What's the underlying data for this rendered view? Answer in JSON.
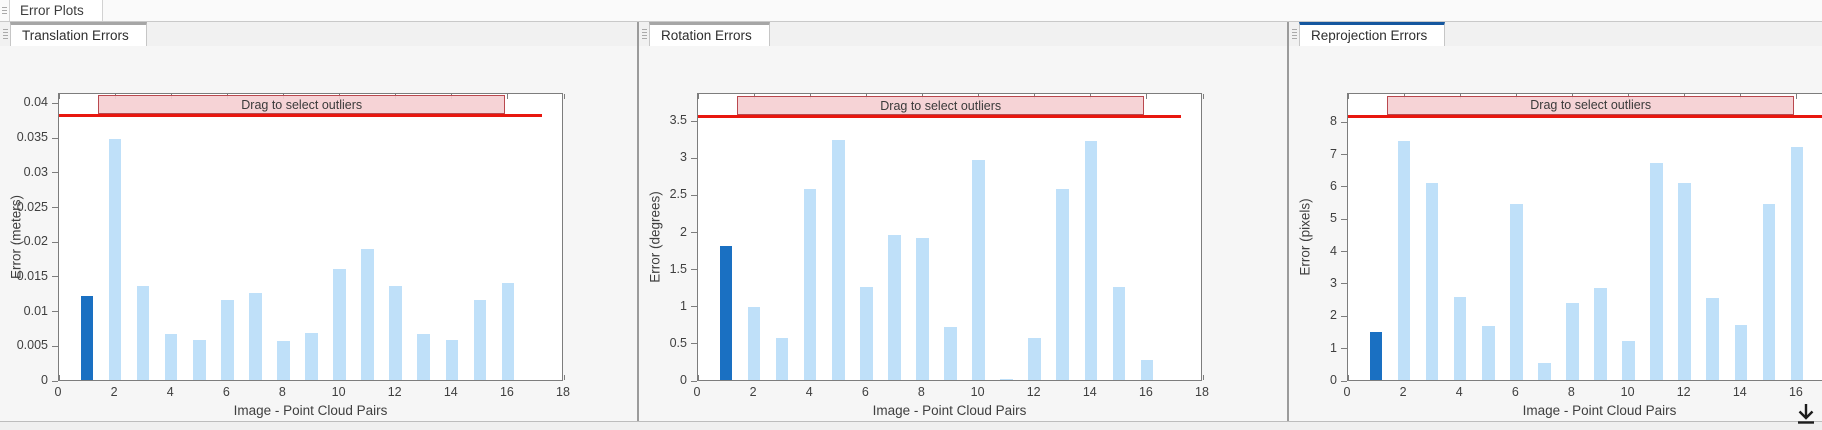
{
  "doc_tab": {
    "label": "Error Plots"
  },
  "panels": [
    {
      "tab_label": "Translation Errors",
      "active": false
    },
    {
      "tab_label": "Rotation Errors",
      "active": false
    },
    {
      "tab_label": "Reprojection Errors",
      "active": true
    }
  ],
  "colors": {
    "bar_light": "#bfe0f9",
    "bar_highlight": "#1a70c2",
    "threshold_red": "#e8170f",
    "band_fill": "rgba(245,207,210,0.92)",
    "band_border": "#b9484e",
    "active_tab_accent": "#15579f",
    "inactive_tab_accent": "#a6a6a6"
  },
  "bottom_bar": {
    "download_icon": "download-arrow-icon"
  },
  "chart_data": [
    {
      "type": "bar",
      "title": "Translation Errors",
      "xlabel": "Image - Point Cloud Pairs",
      "ylabel": "Error (meters)",
      "x": [
        1,
        2,
        3,
        4,
        5,
        6,
        7,
        8,
        9,
        10,
        11,
        12,
        13,
        14,
        15,
        16
      ],
      "values": [
        0.0121,
        0.0347,
        0.0135,
        0.0067,
        0.0058,
        0.0116,
        0.0126,
        0.0056,
        0.0068,
        0.016,
        0.0189,
        0.0135,
        0.0067,
        0.0058,
        0.0116,
        0.014
      ],
      "highlighted_bar_x": 1,
      "bar_width_units": 0.45,
      "xlim": [
        0,
        18
      ],
      "ylim": [
        0,
        0.0415
      ],
      "xtick_values": [
        0,
        2,
        4,
        6,
        8,
        10,
        12,
        14,
        16,
        18
      ],
      "xtick_labels": [
        "0",
        "2",
        "4",
        "6",
        "8",
        "10",
        "12",
        "14",
        "16",
        "18"
      ],
      "ytick_values": [
        0,
        0.005,
        0.01,
        0.015,
        0.02,
        0.025,
        0.03,
        0.035,
        0.04
      ],
      "ytick_labels": [
        "0",
        "0.005",
        "0.01",
        "0.015",
        "0.02",
        "0.025",
        "0.03",
        "0.035",
        "0.04"
      ],
      "grid": false,
      "legend": null,
      "threshold_line": 0.038,
      "threshold_line_x_end": 17.2,
      "selector_band": {
        "label": "Drag to select outliers",
        "x_start": 1.4,
        "x_end": 15.9
      }
    },
    {
      "type": "bar",
      "title": "Rotation Errors",
      "xlabel": "Image - Point Cloud Pairs",
      "ylabel": "Error (degrees)",
      "x": [
        1,
        2,
        3,
        4,
        5,
        6,
        7,
        8,
        9,
        10,
        11,
        12,
        13,
        14,
        15,
        16
      ],
      "values": [
        1.8,
        0.98,
        0.57,
        2.57,
        3.24,
        1.25,
        1.95,
        1.92,
        0.71,
        2.96,
        0.02,
        0.57,
        2.57,
        3.22,
        1.25,
        0.27
      ],
      "highlighted_bar_x": 1,
      "bar_width_units": 0.45,
      "xlim": [
        0,
        18
      ],
      "ylim": [
        0,
        3.88
      ],
      "xtick_values": [
        0,
        2,
        4,
        6,
        8,
        10,
        12,
        14,
        16,
        18
      ],
      "xtick_labels": [
        "0",
        "2",
        "4",
        "6",
        "8",
        "10",
        "12",
        "14",
        "16",
        "18"
      ],
      "ytick_values": [
        0,
        0.5,
        1,
        1.5,
        2,
        2.5,
        3,
        3.5
      ],
      "ytick_labels": [
        "0",
        "0.5",
        "1",
        "1.5",
        "2",
        "2.5",
        "3",
        "3.5"
      ],
      "grid": false,
      "legend": null,
      "threshold_line": 3.54,
      "threshold_line_x_end": 17.2,
      "selector_band": {
        "label": "Drag to select outliers",
        "x_start": 1.4,
        "x_end": 15.9
      }
    },
    {
      "type": "bar",
      "title": "Reprojection Errors",
      "xlabel": "Image - Point Cloud Pairs",
      "ylabel": "Error (pixels)",
      "x": [
        1,
        2,
        3,
        4,
        5,
        6,
        7,
        8,
        9,
        10,
        11,
        12,
        13,
        14,
        15,
        16
      ],
      "values": [
        1.5,
        7.38,
        6.1,
        2.57,
        1.68,
        5.45,
        0.54,
        2.37,
        2.86,
        1.2,
        6.7,
        6.1,
        2.55,
        1.7,
        5.45,
        7.2
      ],
      "highlighted_bar_x": 1,
      "bar_width_units": 0.45,
      "xlim": [
        0,
        18
      ],
      "ylim": [
        0,
        8.9
      ],
      "xtick_values": [
        0,
        2,
        4,
        6,
        8,
        10,
        12,
        14,
        16,
        18
      ],
      "xtick_labels": [
        "0",
        "2",
        "4",
        "6",
        "8",
        "10",
        "12",
        "14",
        "16",
        "18"
      ],
      "ytick_values": [
        0,
        1,
        2,
        3,
        4,
        5,
        6,
        7,
        8
      ],
      "ytick_labels": [
        "0",
        "1",
        "2",
        "3",
        "4",
        "5",
        "6",
        "7",
        "8"
      ],
      "grid": false,
      "legend": null,
      "threshold_line": 8.14,
      "threshold_line_x_end": 17.2,
      "selector_band": {
        "label": "Drag to select outliers",
        "x_start": 1.4,
        "x_end": 15.9
      }
    }
  ]
}
